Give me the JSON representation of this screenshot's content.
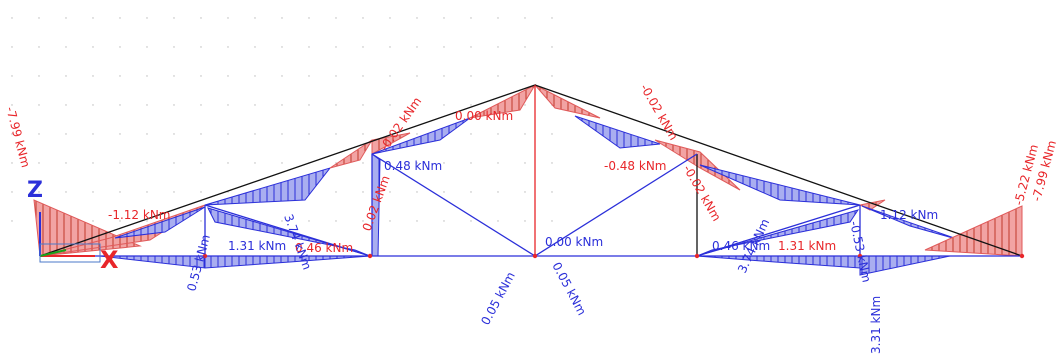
{
  "axes": {
    "z_label": "Z",
    "x_label": "X"
  },
  "colors": {
    "positive_fill": "#f2a3a3",
    "negative_fill": "#a9aef0",
    "positive_text": "#e8262a",
    "negative_text": "#2b2fd9",
    "member": "#2b2fd9",
    "member_red": "#e8262a",
    "chord": "#111111",
    "grid_dot": "#b9b9b9"
  },
  "labels": {
    "l1": "-7.99 kNm",
    "l2": "-1.12 kNm",
    "l3": "0.53 kNm",
    "l4": "1.31 kNm",
    "l5": "0.46 kNm",
    "l6": "3.74 kNm",
    "l7": "0.02 kNm",
    "l8": "-0.02 kNm",
    "l9": "0.48 kNm",
    "l10": "0.00 kNm",
    "l11": "0.00 kNm",
    "l12": "0.05 kNm",
    "l13": "0.05 kNm",
    "l14": "-0.02 kNm",
    "l15": "-0.48 kNm",
    "l16": "-0.02 kNm",
    "l17": "0.46 kNm",
    "l18": "1.31 kNm",
    "l19": "3.74 kNm",
    "l20": "1.12 kNm",
    "l21": "-0.53 kNm",
    "l22": "3.31 kNm",
    "l23": "-5.22 kNm",
    "l24": "-7.99 kNm"
  }
}
